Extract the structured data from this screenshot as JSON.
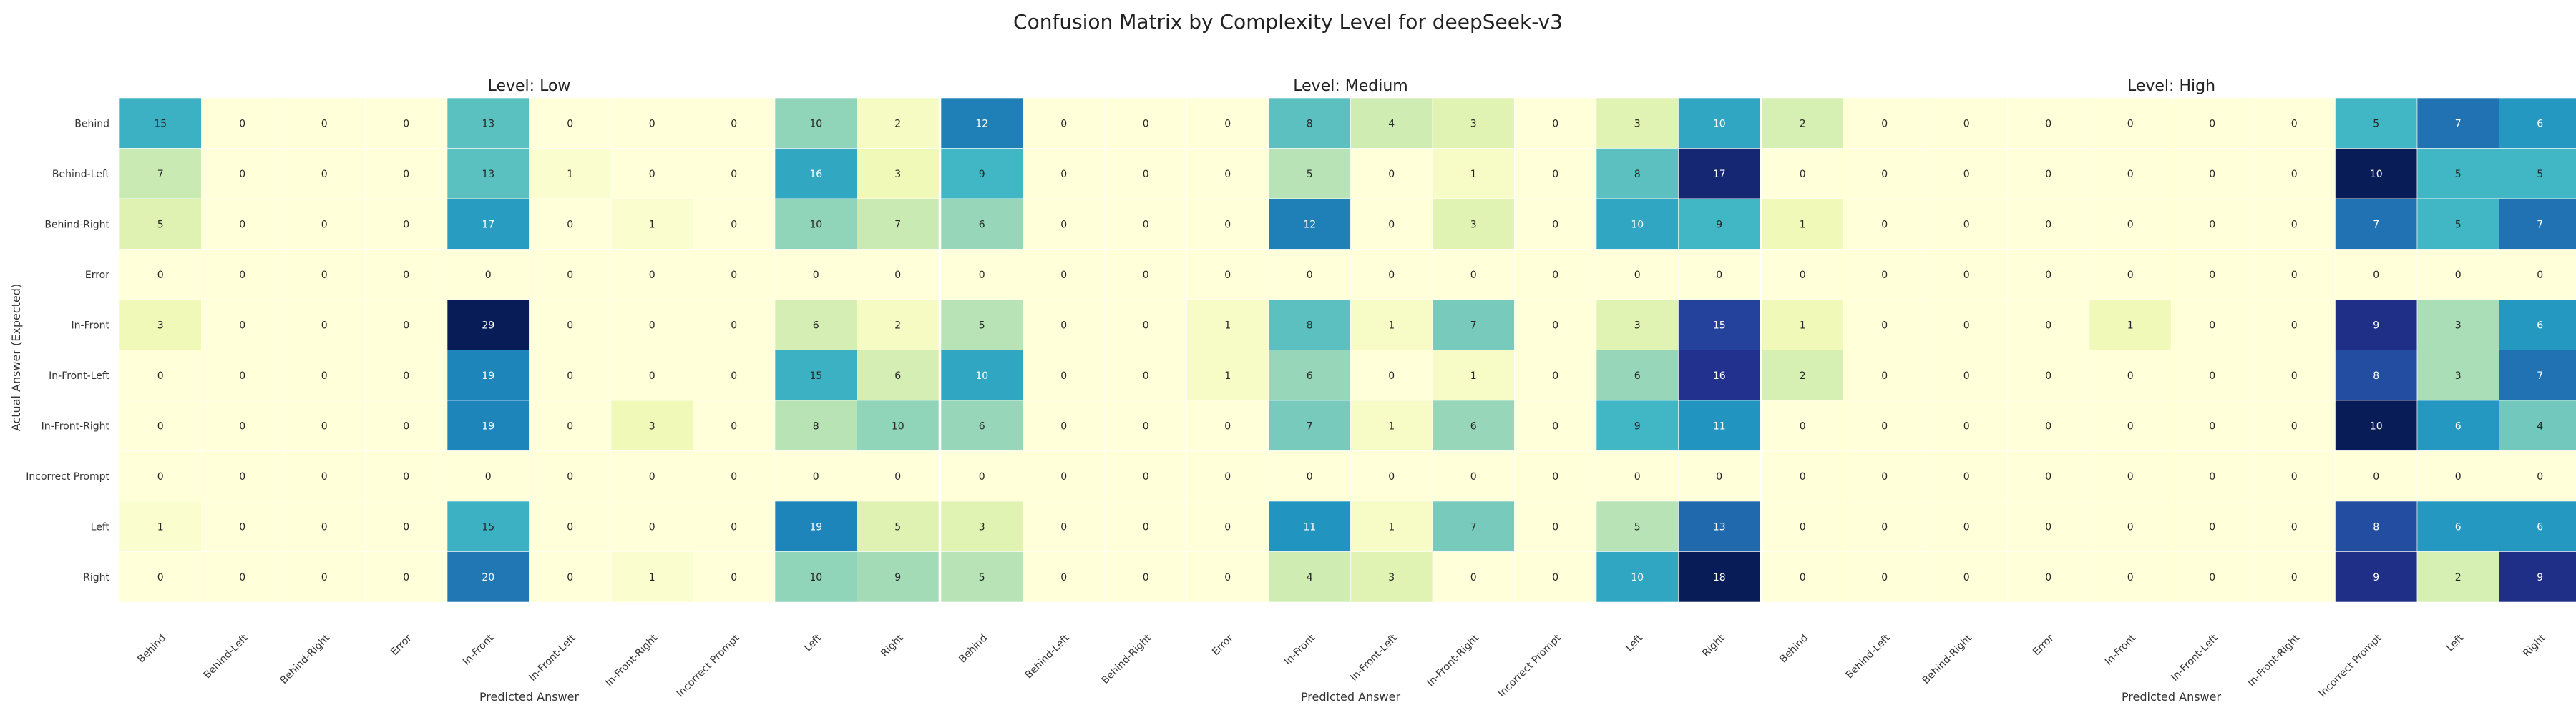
{
  "chart_data": {
    "type": "heatmap",
    "title": "Confusion Matrix by Complexity Level for deepSeek-v3",
    "ylabel": "Actual Answer (Expected)",
    "rows": [
      "Behind",
      "Behind-Left",
      "Behind-Right",
      "Error",
      "In-Front",
      "In-Front-Left",
      "In-Front-Right",
      "Incorrect Prompt",
      "Left",
      "Right"
    ],
    "colormap": "YlGnBu",
    "panels": [
      {
        "title": "Level: Low",
        "xlabel": "Predicted Answer",
        "columns": [
          "Behind",
          "Behind-Left",
          "Behind-Right",
          "Error",
          "In-Front",
          "In-Front-Left",
          "In-Front-Right",
          "Incorrect Prompt",
          "Left",
          "Right"
        ],
        "values": [
          [
            15,
            0,
            0,
            0,
            13,
            0,
            0,
            0,
            10,
            2
          ],
          [
            7,
            0,
            0,
            0,
            13,
            1,
            0,
            0,
            16,
            3
          ],
          [
            5,
            0,
            0,
            0,
            17,
            0,
            1,
            0,
            10,
            7
          ],
          [
            0,
            0,
            0,
            0,
            0,
            0,
            0,
            0,
            0,
            0
          ],
          [
            3,
            0,
            0,
            0,
            29,
            0,
            0,
            0,
            6,
            2
          ],
          [
            0,
            0,
            0,
            0,
            19,
            0,
            0,
            0,
            15,
            6
          ],
          [
            0,
            0,
            0,
            0,
            19,
            0,
            3,
            0,
            8,
            10
          ],
          [
            0,
            0,
            0,
            0,
            0,
            0,
            0,
            0,
            0,
            0
          ],
          [
            1,
            0,
            0,
            0,
            15,
            0,
            0,
            0,
            19,
            5
          ],
          [
            0,
            0,
            0,
            0,
            20,
            0,
            1,
            0,
            10,
            9
          ]
        ]
      },
      {
        "title": "Level: Medium",
        "xlabel": "Predicted Answer",
        "columns": [
          "Behind",
          "Behind-Left",
          "Behind-Right",
          "Error",
          "In-Front",
          "In-Front-Left",
          "In-Front-Right",
          "Incorrect Prompt",
          "Left",
          "Right"
        ],
        "values": [
          [
            12,
            0,
            0,
            0,
            8,
            4,
            3,
            0,
            3,
            10
          ],
          [
            9,
            0,
            0,
            0,
            5,
            0,
            1,
            0,
            8,
            17
          ],
          [
            6,
            0,
            0,
            0,
            12,
            0,
            3,
            0,
            10,
            9
          ],
          [
            0,
            0,
            0,
            0,
            0,
            0,
            0,
            0,
            0,
            0
          ],
          [
            5,
            0,
            0,
            1,
            8,
            1,
            7,
            0,
            3,
            15
          ],
          [
            10,
            0,
            0,
            1,
            6,
            0,
            1,
            0,
            6,
            16
          ],
          [
            6,
            0,
            0,
            0,
            7,
            1,
            6,
            0,
            9,
            11
          ],
          [
            0,
            0,
            0,
            0,
            0,
            0,
            0,
            0,
            0,
            0
          ],
          [
            3,
            0,
            0,
            0,
            11,
            1,
            7,
            0,
            5,
            13
          ],
          [
            5,
            0,
            0,
            0,
            4,
            3,
            0,
            0,
            10,
            18
          ]
        ]
      },
      {
        "title": "Level: High",
        "xlabel": "Predicted Answer",
        "columns": [
          "Behind",
          "Behind-Left",
          "Behind-Right",
          "Error",
          "In-Front",
          "In-Front-Left",
          "In-Front-Right",
          "Incorrect Prompt",
          "Left",
          "Right"
        ],
        "values": [
          [
            2,
            0,
            0,
            0,
            0,
            0,
            0,
            5,
            7,
            6
          ],
          [
            0,
            0,
            0,
            0,
            0,
            0,
            0,
            10,
            5,
            5
          ],
          [
            1,
            0,
            0,
            0,
            0,
            0,
            0,
            7,
            5,
            7
          ],
          [
            0,
            0,
            0,
            0,
            0,
            0,
            0,
            0,
            0,
            0
          ],
          [
            1,
            0,
            0,
            0,
            1,
            0,
            0,
            9,
            3,
            6
          ],
          [
            2,
            0,
            0,
            0,
            0,
            0,
            0,
            8,
            3,
            7
          ],
          [
            0,
            0,
            0,
            0,
            0,
            0,
            0,
            10,
            6,
            4
          ],
          [
            0,
            0,
            0,
            0,
            0,
            0,
            0,
            0,
            0,
            0
          ],
          [
            0,
            0,
            0,
            0,
            0,
            0,
            0,
            8,
            6,
            6
          ],
          [
            0,
            0,
            0,
            0,
            0,
            0,
            0,
            9,
            2,
            9
          ]
        ]
      }
    ]
  }
}
